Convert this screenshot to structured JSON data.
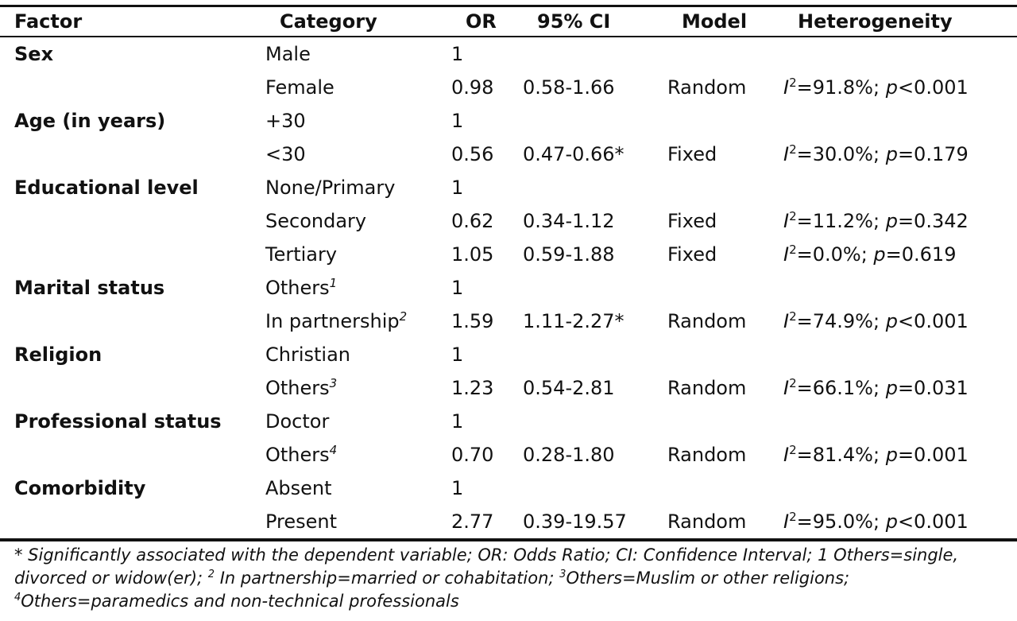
{
  "table": {
    "headers": {
      "factor": "Factor",
      "category": "Category",
      "or": "OR",
      "ci": "95% CI",
      "model": "Model",
      "heterogeneity": "Heterogeneity"
    },
    "rows": [
      {
        "factor": "Sex",
        "category": "Male",
        "category_sup": "",
        "or": "1",
        "ci": "",
        "model": "",
        "i2": "",
        "p_op": "",
        "p": ""
      },
      {
        "factor": "",
        "category": "Female",
        "category_sup": "",
        "or": "0.98",
        "ci": "0.58-1.66",
        "model": "Random",
        "i2": "=91.8%; ",
        "p_op": "<",
        "p": "0.001"
      },
      {
        "factor": "Age (in years)",
        "category": "+30",
        "category_sup": "",
        "or": "1",
        "ci": "",
        "model": "",
        "i2": "",
        "p_op": "",
        "p": ""
      },
      {
        "factor": "",
        "category": "<30",
        "category_sup": "",
        "or": "0.56",
        "ci": "0.47-0.66*",
        "model": "Fixed",
        "i2": "=30.0%; ",
        "p_op": "=",
        "p": "0.179"
      },
      {
        "factor": "Educational level",
        "category": "None/Primary",
        "category_sup": "",
        "or": "1",
        "ci": "",
        "model": "",
        "i2": "",
        "p_op": "",
        "p": ""
      },
      {
        "factor": "",
        "category": "Secondary",
        "category_sup": "",
        "or": "0.62",
        "ci": "0.34-1.12",
        "model": "Fixed",
        "i2": "=11.2%; ",
        "p_op": "=",
        "p": "0.342"
      },
      {
        "factor": "",
        "category": "Tertiary",
        "category_sup": "",
        "or": "1.05",
        "ci": "0.59-1.88",
        "model": "Fixed",
        "i2": "=0.0%; ",
        "p_op": "=",
        "p": "0.619"
      },
      {
        "factor": "Marital status",
        "category": "Others",
        "category_sup": "1",
        "or": "1",
        "ci": "",
        "model": "",
        "i2": "",
        "p_op": "",
        "p": ""
      },
      {
        "factor": "",
        "category": "In partnership",
        "category_sup": "2",
        "or": "1.59",
        "ci": "1.11-2.27*",
        "model": "Random",
        "i2": "=74.9%; ",
        "p_op": "<",
        "p": "0.001"
      },
      {
        "factor": "Religion",
        "category": "Christian",
        "category_sup": "",
        "or": "1",
        "ci": "",
        "model": "",
        "i2": "",
        "p_op": "",
        "p": ""
      },
      {
        "factor": "",
        "category": "Others",
        "category_sup": "3",
        "or": "1.23",
        "ci": "0.54-2.81",
        "model": "Random",
        "i2": "=66.1%; ",
        "p_op": "=",
        "p": "0.031"
      },
      {
        "factor": "Professional status",
        "category": "Doctor",
        "category_sup": "",
        "or": "1",
        "ci": "",
        "model": "",
        "i2": "",
        "p_op": "",
        "p": ""
      },
      {
        "factor": "",
        "category": "Others",
        "category_sup": "4",
        "or": "0.70",
        "ci": "0.28-1.80",
        "model": "Random",
        "i2": "=81.4%; ",
        "p_op": "=",
        "p": "0.001"
      },
      {
        "factor": "Comorbidity",
        "category": "Absent",
        "category_sup": "",
        "or": "1",
        "ci": "",
        "model": "",
        "i2": "",
        "p_op": "",
        "p": ""
      },
      {
        "factor": "",
        "category": "Present",
        "category_sup": "",
        "or": "2.77",
        "ci": "0.39-19.57",
        "model": "Random",
        "i2": "=95.0%; ",
        "p_op": "<",
        "p": "0.001"
      }
    ]
  },
  "footnote": {
    "line1": "* Significantly associated with the dependent variable; OR: Odds Ratio; CI: Confidence Interval; 1 Others=single,",
    "line2a": "divorced or widow(er); ",
    "line2_sup1": "2",
    "line2b": " In partnership=married or cohabitation; ",
    "line2_sup2": "3",
    "line2c": "Others=Muslim or other religions;",
    "line3_sup": "4",
    "line3": "Others=paramedics and non-technical professionals"
  }
}
